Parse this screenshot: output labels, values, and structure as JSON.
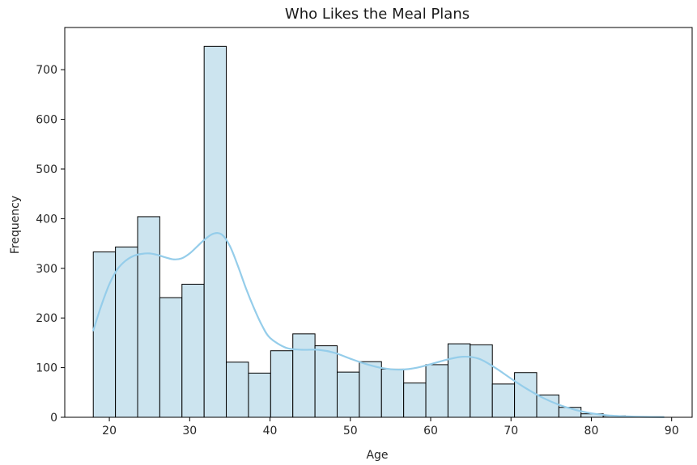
{
  "chart_data": {
    "type": "bar",
    "title": "Who Likes the Meal Plans",
    "xlabel": "Age",
    "ylabel": "Frequency",
    "xlim": [
      14.45,
      92.55
    ],
    "ylim": [
      0,
      785
    ],
    "xticks": [
      20,
      30,
      40,
      50,
      60,
      70,
      80,
      90
    ],
    "yticks": [
      0,
      100,
      200,
      300,
      400,
      500,
      600,
      700
    ],
    "grid": false,
    "bin_edges": [
      18,
      20.76,
      23.52,
      26.28,
      29.04,
      31.8,
      34.56,
      37.32,
      40.08,
      42.84,
      45.6,
      48.36,
      51.12,
      53.88,
      56.64,
      59.4,
      62.16,
      64.92,
      67.68,
      70.44,
      73.2,
      75.96,
      78.72,
      81.48,
      84.24,
      87,
      89
    ],
    "counts": [
      333,
      343,
      404,
      241,
      268,
      747,
      111,
      89,
      134,
      168,
      144,
      91,
      112,
      97,
      69,
      106,
      148,
      146,
      67,
      90,
      45,
      20,
      7,
      3,
      1,
      1
    ],
    "kde": {
      "name": "",
      "x": [
        18,
        19,
        20,
        21,
        22,
        23,
        24,
        25,
        26,
        27,
        28,
        29,
        30,
        31,
        32,
        33,
        34,
        35,
        36,
        37,
        38,
        39,
        40,
        42,
        44,
        46,
        48,
        50,
        52,
        54,
        56,
        58,
        60,
        62,
        64,
        66,
        68,
        70,
        72,
        74,
        76,
        78,
        80,
        82,
        84,
        86,
        88,
        89
      ],
      "y": [
        175,
        225,
        268,
        298,
        315,
        325,
        329,
        330,
        327,
        322,
        318,
        320,
        330,
        345,
        360,
        370,
        368,
        345,
        305,
        260,
        220,
        185,
        160,
        140,
        136,
        136,
        130,
        118,
        107,
        99,
        96,
        99,
        107,
        116,
        122,
        118,
        100,
        78,
        57,
        39,
        25,
        15,
        8,
        4,
        2,
        1,
        0.5,
        0.3
      ]
    },
    "colors": {
      "bar_fill": "#cce4ef",
      "bar_edge": "#000000",
      "kde_line": "#95cdea",
      "axis": "#000000",
      "text": "#262626"
    }
  }
}
